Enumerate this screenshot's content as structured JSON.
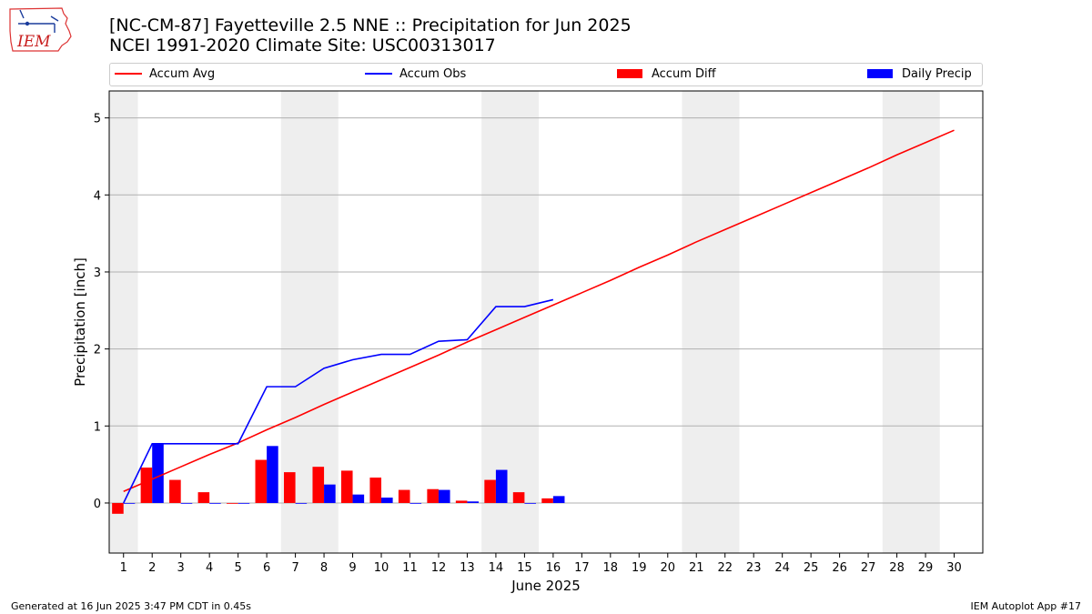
{
  "header": {
    "logo_text": "IEM",
    "title_line1": "[NC-CM-87] Fayetteville 2.5 NNE :: Precipitation for Jun 2025",
    "title_line2": "NCEI 1991-2020 Climate Site: USC00313017"
  },
  "footer": {
    "left": "Generated at 16 Jun 2025 3:47 PM CDT in 0.45s",
    "right": "IEM Autoplot App #17"
  },
  "colors": {
    "accum_avg": "#ff0000",
    "accum_obs": "#0000ff",
    "accum_diff": "#ff0000",
    "daily_precip": "#0000ff",
    "weekend_shade": "#eeeeee",
    "grid": "#b0b0b0"
  },
  "chart_data": {
    "type": "bar",
    "xlabel": "June 2025",
    "ylabel": "Precipitation [inch]",
    "xlim": [
      0.5,
      31.0
    ],
    "ylim": [
      -0.65,
      5.35
    ],
    "yticks": [
      0,
      1,
      2,
      3,
      4,
      5
    ],
    "xticks": [
      1,
      2,
      3,
      4,
      5,
      6,
      7,
      8,
      9,
      10,
      11,
      12,
      13,
      14,
      15,
      16,
      17,
      18,
      19,
      20,
      21,
      22,
      23,
      24,
      25,
      26,
      27,
      28,
      29,
      30
    ],
    "grid": "y",
    "legend_position": "top",
    "weekend_spans": [
      [
        0.5,
        1.5
      ],
      [
        6.5,
        8.5
      ],
      [
        13.5,
        15.5
      ],
      [
        20.5,
        22.5
      ],
      [
        27.5,
        29.5
      ]
    ],
    "legend": [
      "Accum Avg",
      "Accum Obs",
      "Accum Diff",
      "Daily Precip"
    ],
    "series": [
      {
        "name": "Accum Avg",
        "kind": "line",
        "x": [
          1,
          2,
          3,
          4,
          5,
          6,
          7,
          8,
          9,
          10,
          11,
          12,
          13,
          14,
          15,
          16,
          17,
          18,
          19,
          20,
          21,
          22,
          23,
          24,
          25,
          26,
          27,
          28,
          29,
          30
        ],
        "values": [
          0.15,
          0.31,
          0.47,
          0.63,
          0.78,
          0.95,
          1.11,
          1.28,
          1.44,
          1.6,
          1.76,
          1.92,
          2.09,
          2.25,
          2.41,
          2.57,
          2.73,
          2.89,
          3.06,
          3.22,
          3.39,
          3.55,
          3.71,
          3.87,
          4.03,
          4.19,
          4.35,
          4.52,
          4.68,
          4.84
        ]
      },
      {
        "name": "Accum Obs",
        "kind": "line",
        "x": [
          1,
          2,
          3,
          4,
          5,
          6,
          7,
          8,
          9,
          10,
          11,
          12,
          13,
          14,
          15,
          16
        ],
        "values": [
          0.0,
          0.77,
          0.77,
          0.77,
          0.77,
          1.51,
          1.51,
          1.75,
          1.86,
          1.93,
          1.93,
          2.1,
          2.12,
          2.55,
          2.55,
          2.64
        ]
      },
      {
        "name": "Accum Diff",
        "kind": "bar",
        "x": [
          1,
          2,
          3,
          4,
          5,
          6,
          7,
          8,
          9,
          10,
          11,
          12,
          13,
          14,
          15,
          16
        ],
        "values": [
          -0.14,
          0.46,
          0.3,
          0.14,
          -0.01,
          0.56,
          0.4,
          0.47,
          0.42,
          0.33,
          0.17,
          0.18,
          0.03,
          0.3,
          0.14,
          0.06
        ]
      },
      {
        "name": "Daily Precip",
        "kind": "bar",
        "x": [
          1,
          2,
          3,
          4,
          5,
          6,
          7,
          8,
          9,
          10,
          11,
          12,
          13,
          14,
          15,
          16
        ],
        "values": [
          0.0,
          0.77,
          0.0,
          0.0,
          0.0,
          0.74,
          0.0,
          0.24,
          0.11,
          0.07,
          0.0,
          0.17,
          0.02,
          0.43,
          0.0,
          0.09
        ]
      }
    ]
  }
}
